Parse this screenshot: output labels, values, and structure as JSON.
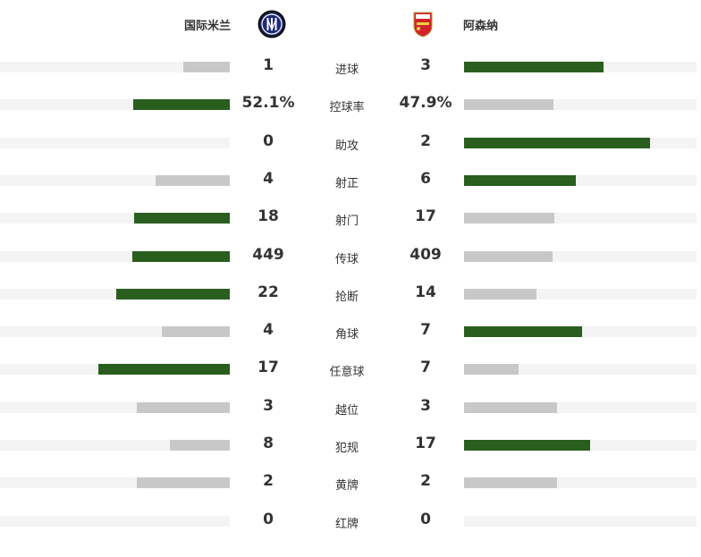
{
  "home": {
    "name": "国际米兰",
    "logo": "inter-milan-crest"
  },
  "away": {
    "name": "阿森纳",
    "logo": "arsenal-crest"
  },
  "colors": {
    "leader": "#2a5e1e",
    "trailer": "#c8c8c8",
    "track": "#f4f4f4"
  },
  "stats": [
    {
      "label": "进球",
      "home": "1",
      "away": "3",
      "hv": 1,
      "av": 3
    },
    {
      "label": "控球率",
      "home": "52.1%",
      "away": "47.9%",
      "hv": 52.1,
      "av": 47.9
    },
    {
      "label": "助攻",
      "home": "0",
      "away": "2",
      "hv": 0,
      "av": 2
    },
    {
      "label": "射正",
      "home": "4",
      "away": "6",
      "hv": 4,
      "av": 6
    },
    {
      "label": "射门",
      "home": "18",
      "away": "17",
      "hv": 18,
      "av": 17
    },
    {
      "label": "传球",
      "home": "449",
      "away": "409",
      "hv": 449,
      "av": 409
    },
    {
      "label": "抢断",
      "home": "22",
      "away": "14",
      "hv": 22,
      "av": 14
    },
    {
      "label": "角球",
      "home": "4",
      "away": "7",
      "hv": 4,
      "av": 7
    },
    {
      "label": "任意球",
      "home": "17",
      "away": "7",
      "hv": 17,
      "av": 7
    },
    {
      "label": "越位",
      "home": "3",
      "away": "3",
      "hv": 3,
      "av": 3
    },
    {
      "label": "犯规",
      "home": "8",
      "away": "17",
      "hv": 8,
      "av": 17
    },
    {
      "label": "黄牌",
      "home": "2",
      "away": "2",
      "hv": 2,
      "av": 2
    },
    {
      "label": "红牌",
      "home": "0",
      "away": "0",
      "hv": 0,
      "av": 0
    }
  ]
}
